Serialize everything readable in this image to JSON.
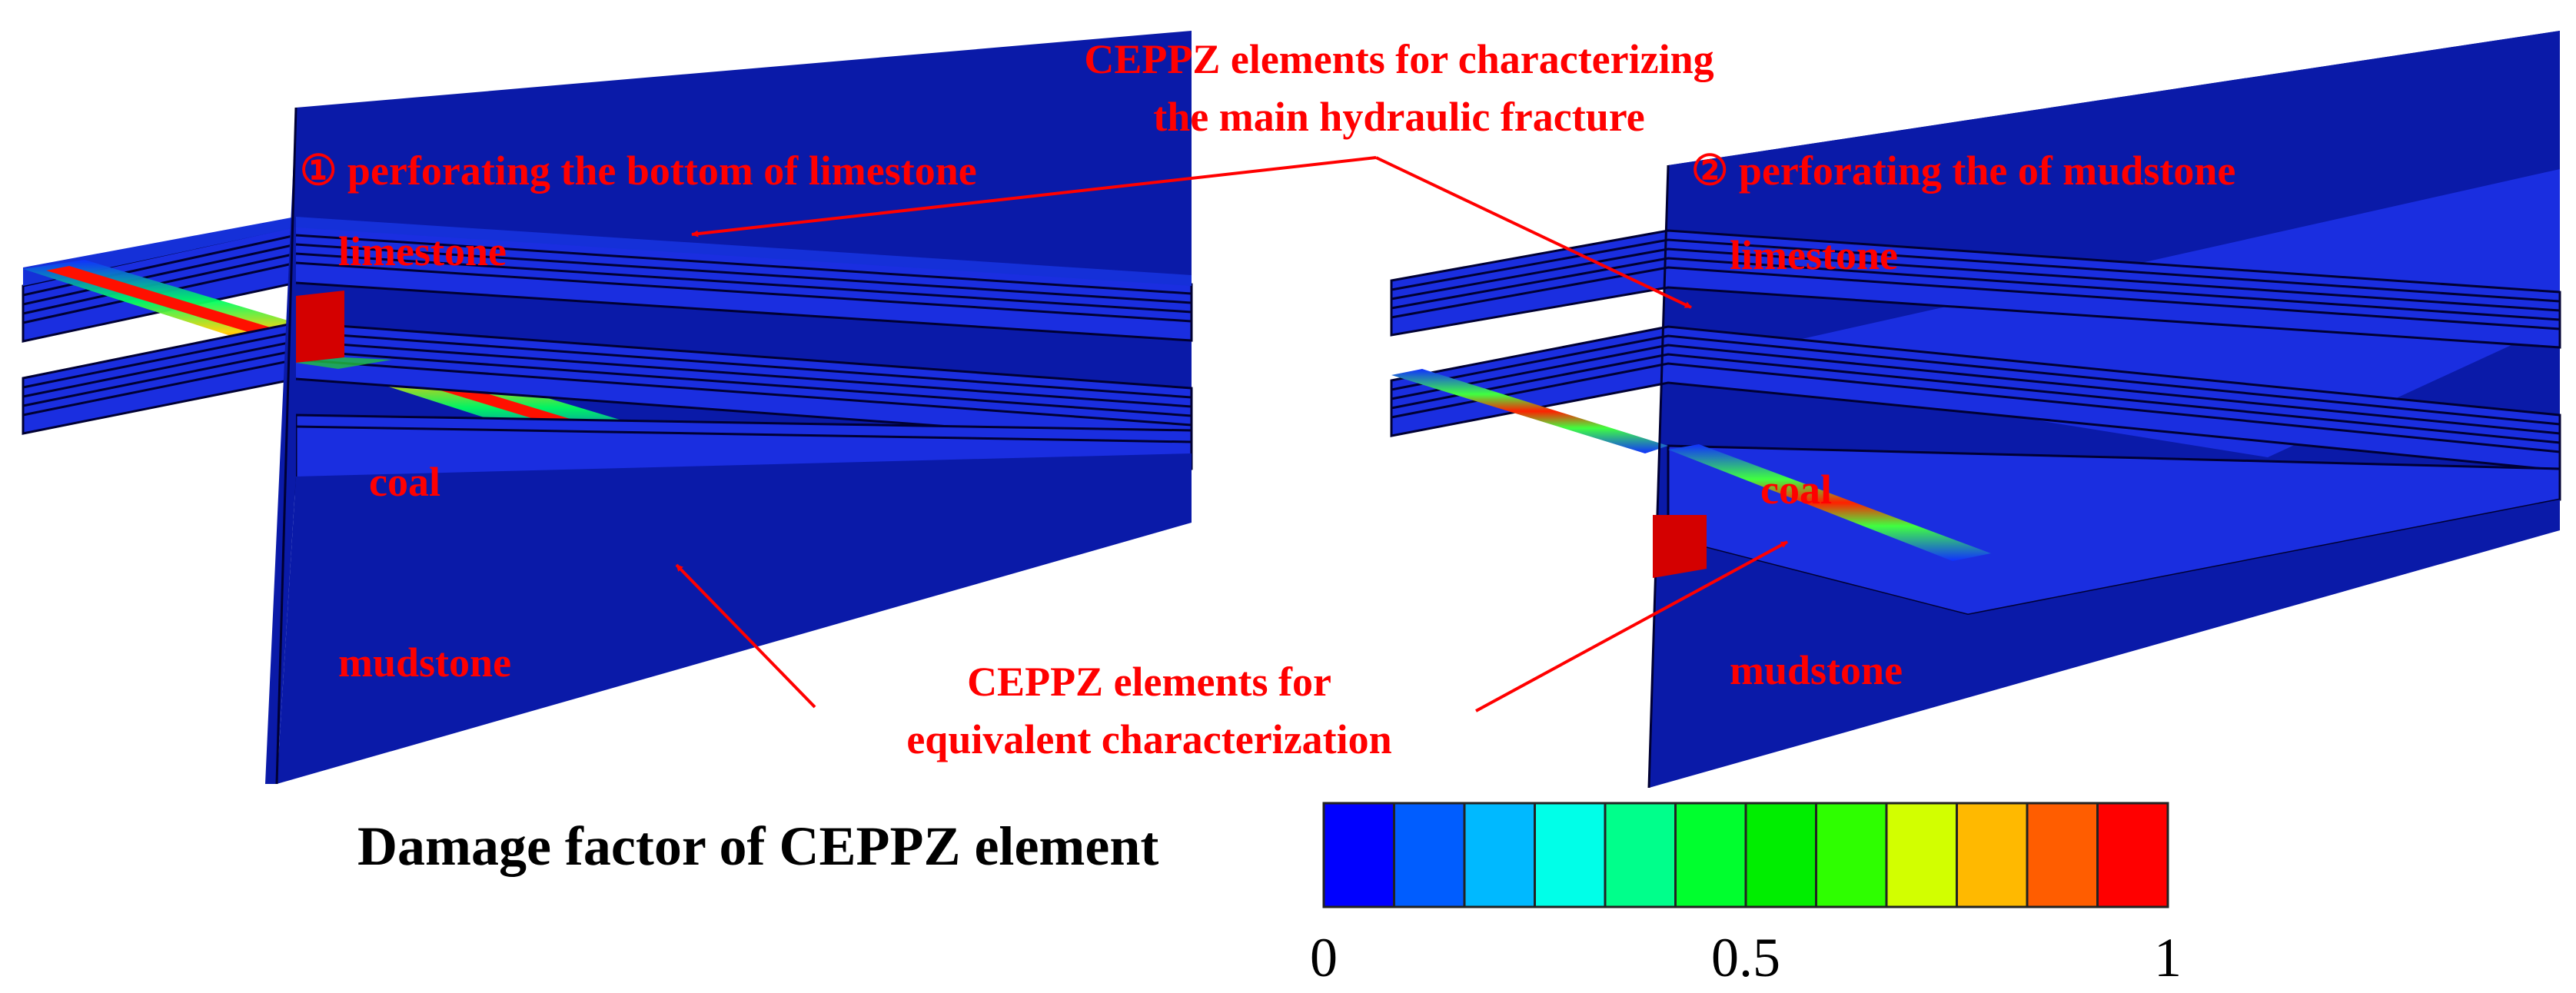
{
  "labels": {
    "top_annotation_line1": "CEPPZ elements for characterizing",
    "top_annotation_line2": "the main hydraulic fracture",
    "case1_title": "① perforating the bottom of limestone",
    "case2_title": "② perforating the of mudstone",
    "case1_limestone": "limestone",
    "case1_coal": "coal",
    "case1_mudstone": "mudstone",
    "case2_limestone": "limestone",
    "case2_coal": "coal",
    "case2_mudstone": "mudstone",
    "bottom_annotation_line1": "CEPPZ elements for",
    "bottom_annotation_line2": "equivalent characterization"
  },
  "legend": {
    "title": "Damage factor of CEPPZ element",
    "colors": [
      "#0000ff",
      "#005dff",
      "#00b9ff",
      "#00ffe8",
      "#00ff8b",
      "#00ff2e",
      "#00ee00",
      "#2eff00",
      "#d2ff00",
      "#ffb900",
      "#ff5d00",
      "#ff0000"
    ],
    "tick_labels": [
      "0",
      "0.5",
      "1"
    ],
    "tick_values": [
      0,
      0.5,
      1
    ]
  },
  "colors": {
    "rock_dark": "#0a1aa8",
    "rock_mid": "#1a2ee0",
    "layer_edge": "#000033",
    "annotation": "#ff0000",
    "fracture": "#d40000"
  }
}
